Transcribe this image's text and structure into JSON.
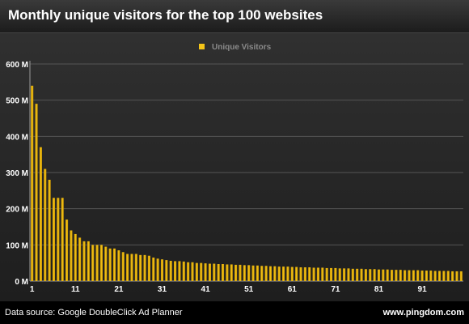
{
  "header": {
    "title": "Monthly unique visitors for the top 100 websites"
  },
  "footer": {
    "source": "Data source: Google DoubleClick Ad Planner",
    "site": "www.pingdom.com"
  },
  "colors": {
    "bar": "#f5c518",
    "bar_dark": "#c89400",
    "grid": "#555555",
    "legend_text": "#8a8a8a"
  },
  "chart_data": {
    "type": "bar",
    "title": "Monthly unique visitors for the top 100 websites",
    "xlabel": "",
    "ylabel": "",
    "ylim": [
      0,
      600000000
    ],
    "y_ticks": [
      {
        "value": 0,
        "label": "0 M"
      },
      {
        "value": 100000000,
        "label": "100 M"
      },
      {
        "value": 200000000,
        "label": "200 M"
      },
      {
        "value": 300000000,
        "label": "300 M"
      },
      {
        "value": 400000000,
        "label": "400 M"
      },
      {
        "value": 500000000,
        "label": "500 M"
      },
      {
        "value": 600000000,
        "label": "600 M"
      }
    ],
    "x_ticks": [
      "1",
      "11",
      "21",
      "31",
      "41",
      "51",
      "61",
      "71",
      "81",
      "91"
    ],
    "grid": true,
    "legend_position": "top-center",
    "categories": [
      1,
      2,
      3,
      4,
      5,
      6,
      7,
      8,
      9,
      10,
      11,
      12,
      13,
      14,
      15,
      16,
      17,
      18,
      19,
      20,
      21,
      22,
      23,
      24,
      25,
      26,
      27,
      28,
      29,
      30,
      31,
      32,
      33,
      34,
      35,
      36,
      37,
      38,
      39,
      40,
      41,
      42,
      43,
      44,
      45,
      46,
      47,
      48,
      49,
      50,
      51,
      52,
      53,
      54,
      55,
      56,
      57,
      58,
      59,
      60,
      61,
      62,
      63,
      64,
      65,
      66,
      67,
      68,
      69,
      70,
      71,
      72,
      73,
      74,
      75,
      76,
      77,
      78,
      79,
      80,
      81,
      82,
      83,
      84,
      85,
      86,
      87,
      88,
      89,
      90,
      91,
      92,
      93,
      94,
      95,
      96,
      97,
      98,
      99,
      100
    ],
    "series": [
      {
        "name": "Unique Visitors",
        "values": [
          540000000,
          490000000,
          370000000,
          310000000,
          280000000,
          230000000,
          230000000,
          230000000,
          170000000,
          140000000,
          130000000,
          120000000,
          110000000,
          110000000,
          100000000,
          100000000,
          100000000,
          95000000,
          90000000,
          90000000,
          85000000,
          80000000,
          75000000,
          75000000,
          75000000,
          72000000,
          72000000,
          70000000,
          65000000,
          62000000,
          60000000,
          58000000,
          56000000,
          55000000,
          55000000,
          54000000,
          52000000,
          52000000,
          50000000,
          50000000,
          49000000,
          48000000,
          48000000,
          47000000,
          47000000,
          46000000,
          46000000,
          45000000,
          45000000,
          44000000,
          44000000,
          43000000,
          43000000,
          42000000,
          42000000,
          41000000,
          41000000,
          40000000,
          40000000,
          40000000,
          39000000,
          39000000,
          38000000,
          38000000,
          38000000,
          37000000,
          37000000,
          37000000,
          36000000,
          36000000,
          36000000,
          35000000,
          35000000,
          35000000,
          34000000,
          34000000,
          34000000,
          33000000,
          33000000,
          33000000,
          32000000,
          32000000,
          32000000,
          31000000,
          31000000,
          31000000,
          30000000,
          30000000,
          30000000,
          30000000,
          29000000,
          29000000,
          29000000,
          28000000,
          28000000,
          28000000,
          28000000,
          27000000,
          27000000,
          27000000
        ]
      }
    ]
  }
}
